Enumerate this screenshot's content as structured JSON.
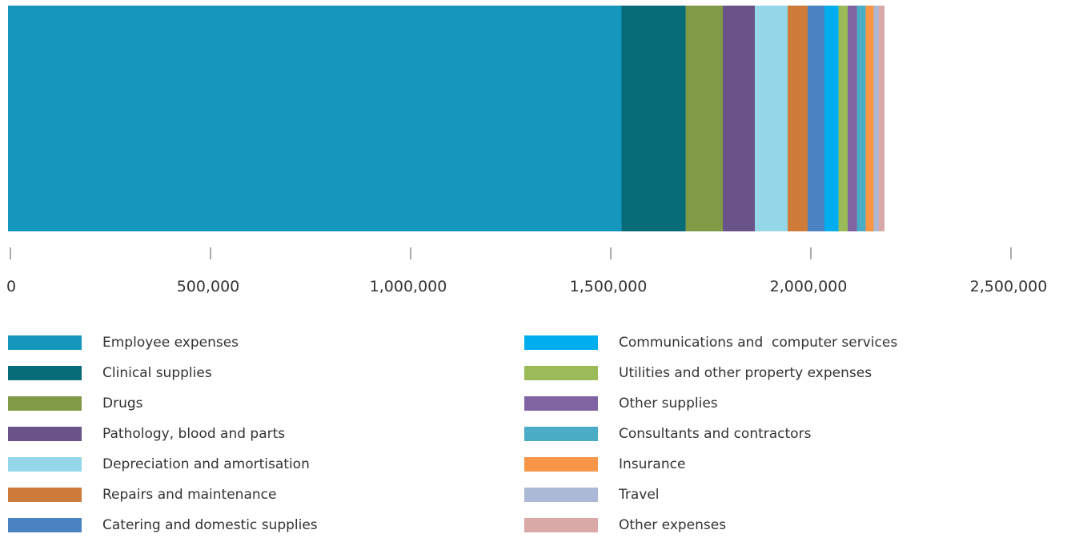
{
  "chart_data": {
    "type": "bar",
    "orientation": "horizontal-stacked",
    "title": "",
    "xlabel": "",
    "ylabel": "",
    "xlim": [
      0,
      2500000
    ],
    "x_ticks": [
      0,
      500000,
      1000000,
      1500000,
      2000000,
      2500000
    ],
    "x_tick_labels": [
      "0",
      "500,000",
      "1,000,000",
      "1,500,000",
      "2,000,000",
      "2,500,000"
    ],
    "grid": false,
    "legend_position": "bottom",
    "series": [
      {
        "name": "Employee expenses",
        "value": 1533000,
        "color": "#1596bd"
      },
      {
        "name": "Clinical supplies",
        "value": 160000,
        "color": "#086b78"
      },
      {
        "name": "Drugs",
        "value": 93000,
        "color": "#819a47"
      },
      {
        "name": "Pathology, blood and parts",
        "value": 80000,
        "color": "#6a5388"
      },
      {
        "name": "Depreciation and amortisation",
        "value": 82000,
        "color": "#93d7e9"
      },
      {
        "name": "Repairs and maintenance",
        "value": 50000,
        "color": "#cf7b3a"
      },
      {
        "name": "Catering and domestic supplies",
        "value": 42000,
        "color": "#4b82c1"
      },
      {
        "name": "Communications and  computer services",
        "value": 35000,
        "color": "#00aeef"
      },
      {
        "name": "Utilities and other property expenses",
        "value": 23000,
        "color": "#9bbb59"
      },
      {
        "name": "Other supplies",
        "value": 23000,
        "color": "#8064a2"
      },
      {
        "name": "Consultants and contractors",
        "value": 22000,
        "color": "#4bacc6"
      },
      {
        "name": "Insurance",
        "value": 20000,
        "color": "#f79646"
      },
      {
        "name": "Travel",
        "value": 12000,
        "color": "#abb9d6"
      },
      {
        "name": "Other expenses",
        "value": 15000,
        "color": "#d8a9a6"
      }
    ]
  }
}
